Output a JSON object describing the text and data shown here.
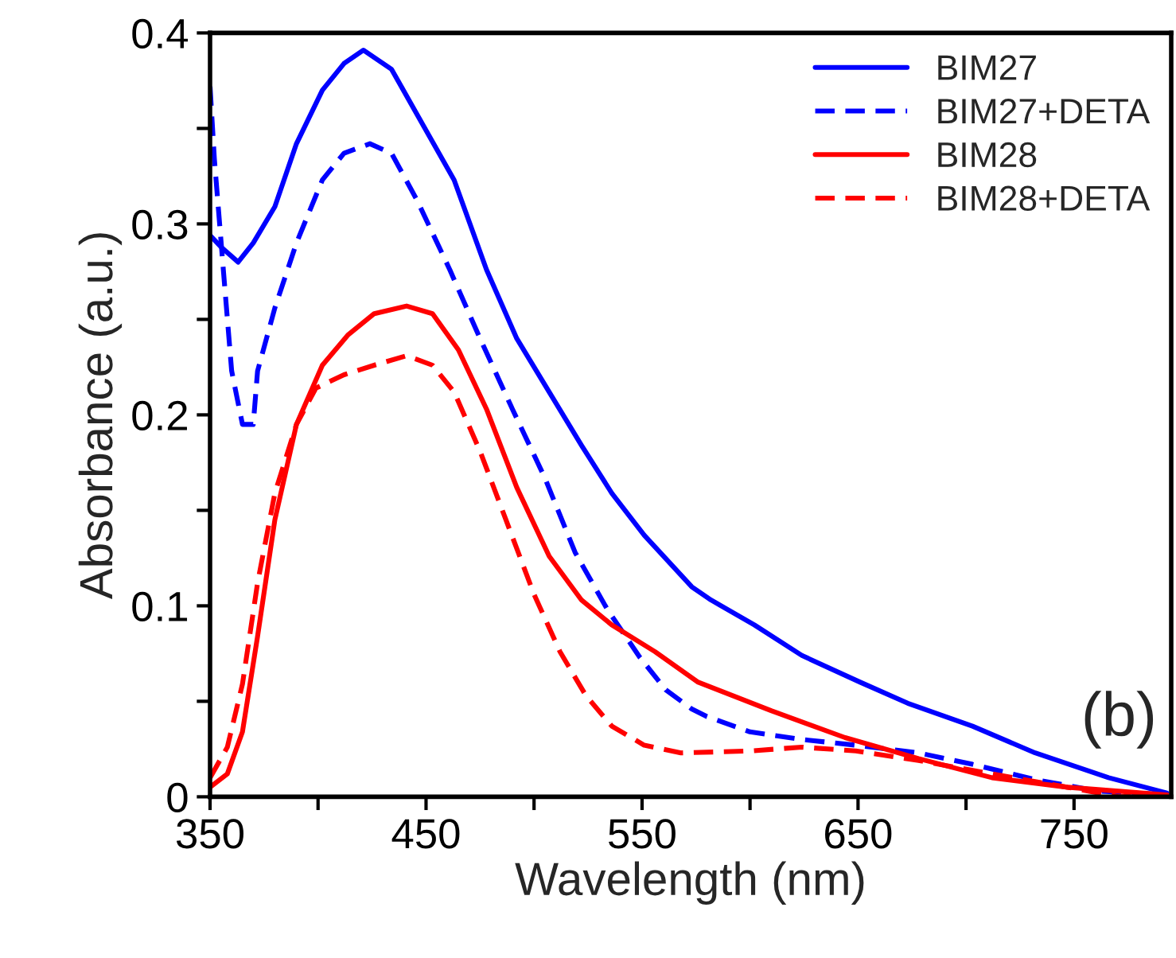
{
  "chart_data": {
    "type": "line",
    "xlabel": "Wavelength (nm)",
    "ylabel": "Absorbance (a.u.)",
    "xlim": [
      350,
      795
    ],
    "ylim": [
      0,
      0.4
    ],
    "xticks": [
      350,
      {
        "value": 400,
        "label": null
      },
      450,
      {
        "value": 500,
        "label": null
      },
      550,
      {
        "value": 600,
        "label": null
      },
      650,
      {
        "value": 700,
        "label": null
      },
      750
    ],
    "yticks": [
      0,
      {
        "value": 0.05,
        "label": null
      },
      0.1,
      {
        "value": 0.15,
        "label": null
      },
      0.2,
      {
        "value": 0.25,
        "label": null
      },
      0.3,
      {
        "value": 0.35,
        "label": null
      },
      0.4
    ],
    "grid": false,
    "legend": "top right",
    "marker": "none",
    "annotations": [
      "(b)"
    ],
    "series": [
      {
        "name": "BIM27",
        "color": "#0000ff",
        "line_style": "solid",
        "x": [
          350,
          355,
          363,
          370,
          380,
          390,
          402,
          412,
          421,
          434,
          448,
          463,
          478,
          492,
          507,
          522,
          536,
          551,
          573,
          582,
          602,
          624,
          651,
          673,
          703,
          732,
          766,
          793
        ],
        "values": [
          0.294,
          0.288,
          0.28,
          0.29,
          0.309,
          0.342,
          0.37,
          0.384,
          0.391,
          0.381,
          0.353,
          0.323,
          0.276,
          0.24,
          0.212,
          0.184,
          0.159,
          0.137,
          0.11,
          0.103,
          0.09,
          0.074,
          0.06,
          0.049,
          0.037,
          0.023,
          0.01,
          0.002
        ]
      },
      {
        "name": "BIM27+DETA",
        "color": "#0000ff",
        "line_style": "dashed",
        "x": [
          350,
          352,
          356,
          360,
          365,
          370,
          372,
          380,
          390,
          402,
          412,
          424,
          434,
          446,
          461,
          475,
          490,
          505,
          519,
          534,
          549,
          561,
          573,
          580,
          600,
          624,
          649,
          678,
          703,
          732,
          761,
          793
        ],
        "values": [
          0.372,
          0.334,
          0.278,
          0.223,
          0.195,
          0.195,
          0.223,
          0.256,
          0.29,
          0.323,
          0.337,
          0.342,
          0.337,
          0.312,
          0.276,
          0.24,
          0.203,
          0.167,
          0.128,
          0.098,
          0.073,
          0.056,
          0.046,
          0.042,
          0.034,
          0.03,
          0.027,
          0.023,
          0.017,
          0.009,
          0.003,
          0.001
        ]
      },
      {
        "name": "BIM28",
        "color": "#ff0000",
        "line_style": "solid",
        "x": [
          350,
          358,
          365,
          372,
          380,
          390,
          402,
          414,
          426,
          441,
          453,
          465,
          478,
          492,
          507,
          522,
          536,
          556,
          576,
          610,
          644,
          678,
          712,
          747,
          793
        ],
        "values": [
          0.005,
          0.012,
          0.034,
          0.084,
          0.145,
          0.195,
          0.226,
          0.242,
          0.253,
          0.257,
          0.253,
          0.234,
          0.203,
          0.162,
          0.126,
          0.103,
          0.09,
          0.076,
          0.06,
          0.045,
          0.031,
          0.02,
          0.01,
          0.005,
          0.001
        ]
      },
      {
        "name": "BIM28+DETA",
        "color": "#ff0000",
        "line_style": "dashed",
        "x": [
          350,
          358,
          365,
          372,
          380,
          390,
          399,
          412,
          426,
          441,
          453,
          463,
          475,
          487,
          500,
          512,
          524,
          536,
          551,
          568,
          600,
          624,
          649,
          678,
          712,
          747,
          771,
          793
        ],
        "values": [
          0.01,
          0.026,
          0.059,
          0.112,
          0.159,
          0.195,
          0.214,
          0.221,
          0.226,
          0.231,
          0.226,
          0.212,
          0.181,
          0.145,
          0.106,
          0.076,
          0.053,
          0.037,
          0.027,
          0.023,
          0.024,
          0.026,
          0.024,
          0.019,
          0.012,
          0.005,
          0.0,
          0.001
        ]
      }
    ]
  }
}
